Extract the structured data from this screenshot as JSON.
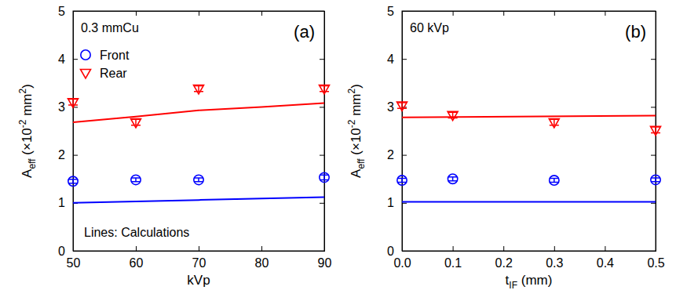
{
  "chart_data": [
    {
      "type": "scatter",
      "subtitle": "0.3 mmCu",
      "panel_label": "(a)",
      "note": "Lines: Calculations",
      "xlabel": [
        "kVp"
      ],
      "ylabel": [
        "A",
        {
          "sub": "eff"
        },
        " (×10",
        {
          "sup": "-2"
        },
        " mm",
        {
          "sup": "2"
        },
        ")"
      ],
      "xlim": [
        50,
        90
      ],
      "xticks": [
        50,
        60,
        70,
        80,
        90
      ],
      "ylim": [
        0,
        5
      ],
      "yticks": [
        0,
        1,
        2,
        3,
        4,
        5
      ],
      "legend": "top-left",
      "series": [
        {
          "name": "Front",
          "color": "#0000ff",
          "marker": "circle",
          "x": [
            50,
            60,
            70,
            90
          ],
          "values": [
            1.45,
            1.48,
            1.48,
            1.53
          ],
          "errors": [
            0.04,
            0.04,
            0.04,
            0.05
          ]
        },
        {
          "name": "Rear",
          "color": "#ff0000",
          "marker": "triangle-down",
          "x": [
            50,
            60,
            70,
            90
          ],
          "values": [
            3.1,
            2.68,
            3.38,
            3.38
          ],
          "errors": [
            0.06,
            0.06,
            0.06,
            0.06
          ]
        },
        {
          "type": "line",
          "color": "#0000ff",
          "line_style": "solid",
          "x": [
            50,
            60,
            70,
            80,
            90
          ],
          "values": [
            1.0,
            1.03,
            1.06,
            1.09,
            1.12
          ]
        },
        {
          "type": "line",
          "color": "#ff0000",
          "line_style": "solid",
          "x": [
            50,
            60,
            70,
            80,
            90
          ],
          "values": [
            2.68,
            2.8,
            2.93,
            3.0,
            3.08
          ]
        }
      ]
    },
    {
      "type": "scatter",
      "subtitle": "60 kVp",
      "panel_label": "(b)",
      "xlabel": [
        "t",
        {
          "sub": "IF"
        },
        " (mm)"
      ],
      "ylabel": [
        "A",
        {
          "sub": "eff"
        },
        " (×10",
        {
          "sup": "-2"
        },
        " mm",
        {
          "sup": "2"
        },
        ")"
      ],
      "xlim": [
        0,
        0.5
      ],
      "xticks": [
        {
          "value": 0,
          "label": "0.0"
        },
        0.1,
        0.2,
        0.3,
        0.4,
        0.5
      ],
      "ylim": [
        0,
        5
      ],
      "yticks": [
        0,
        1,
        2,
        3,
        4,
        5
      ],
      "series": [
        {
          "color": "#0000ff",
          "marker": "circle",
          "x": [
            0,
            0.1,
            0.3,
            0.5
          ],
          "values": [
            1.47,
            1.5,
            1.47,
            1.48
          ],
          "errors": [
            0.04,
            0.04,
            0.04,
            0.04
          ]
        },
        {
          "color": "#ff0000",
          "marker": "triangle-down",
          "x": [
            0,
            0.1,
            0.3,
            0.5
          ],
          "values": [
            3.03,
            2.83,
            2.68,
            2.52
          ],
          "errors": [
            0.06,
            0.06,
            0.06,
            0.06
          ]
        },
        {
          "type": "line",
          "color": "#0000ff",
          "line_style": "solid",
          "x": [
            0,
            0.5
          ],
          "values": [
            1.02,
            1.02
          ]
        },
        {
          "type": "line",
          "color": "#ff0000",
          "line_style": "solid",
          "x": [
            0,
            0.5
          ],
          "values": [
            2.78,
            2.82
          ]
        }
      ]
    }
  ]
}
